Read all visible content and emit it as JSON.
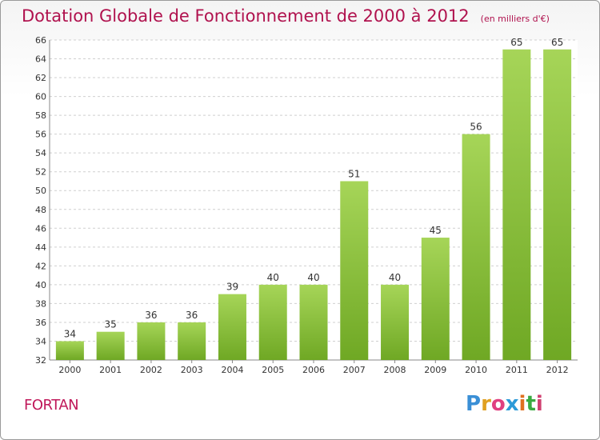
{
  "header": {
    "title": "Dotation Globale de Fonctionnement de 2000 à 2012",
    "subtitle": "(en milliers d'€)"
  },
  "footer": {
    "place": "FORTAN",
    "logo": "Proxiti",
    "logo_colors": [
      "#3a8fd6",
      "#e0a020",
      "#e04080",
      "#2c9ad8",
      "#e07020",
      "#3aaa40",
      "#d04070"
    ]
  },
  "colors": {
    "bar_light": "#a6d558",
    "bar_dark": "#6fa824",
    "title": "#b0124e"
  },
  "chart_data": {
    "type": "bar",
    "categories": [
      "2000",
      "2001",
      "2002",
      "2003",
      "2004",
      "2005",
      "2006",
      "2007",
      "2008",
      "2009",
      "2010",
      "2011",
      "2012"
    ],
    "values": [
      34,
      35,
      36,
      36,
      39,
      40,
      40,
      51,
      40,
      45,
      56,
      65,
      65
    ],
    "ylim": [
      32,
      66
    ],
    "yticks": [
      32,
      34,
      36,
      38,
      40,
      42,
      44,
      46,
      48,
      50,
      52,
      54,
      56,
      58,
      60,
      62,
      64,
      66
    ],
    "grid": true
  }
}
